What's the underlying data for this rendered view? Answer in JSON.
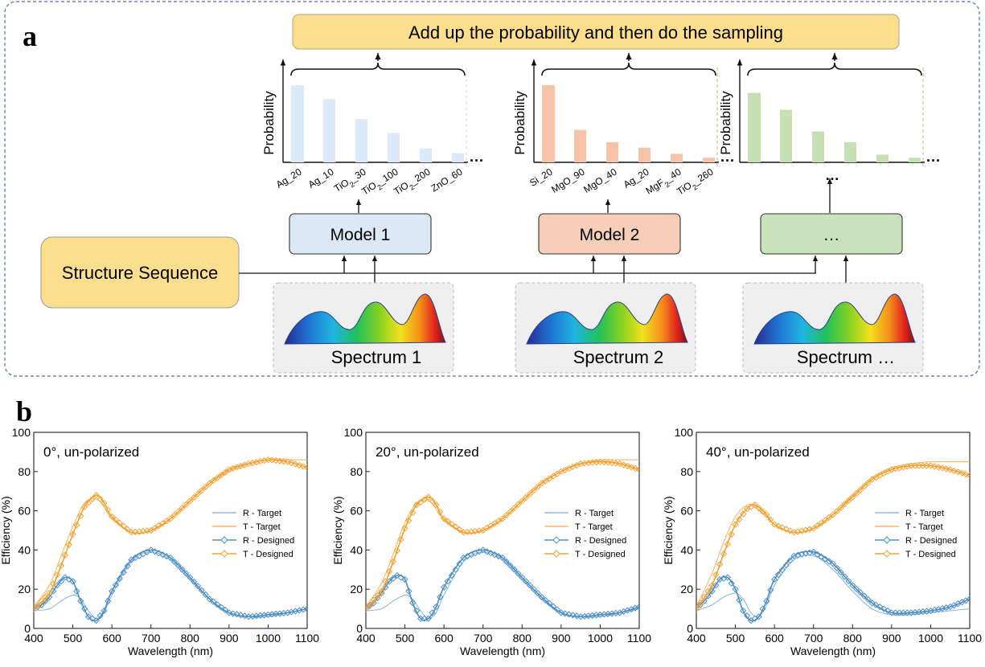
{
  "panel_a": {
    "label": "a",
    "top_box": "Add up the probability and then do the sampling",
    "structure_box": "Structure Sequence",
    "prob_axis_label": "Probability",
    "models": [
      {
        "name": "Model 1",
        "fill": "#dce8f5",
        "bar_color": "#dce9f7",
        "spectrum": "Spectrum 1",
        "categories": [
          "Ag_20",
          "Ag_10",
          "TiO2_30",
          "TiO2_100",
          "TiO2_200",
          "ZnO_60"
        ],
        "probabilities": [
          1.0,
          0.82,
          0.56,
          0.38,
          0.18,
          0.12
        ]
      },
      {
        "name": "Model 2",
        "fill": "#f7cfb8",
        "bar_color": "#f5c4a8",
        "spectrum": "Spectrum 2",
        "categories": [
          "Si_20",
          "MgO_90",
          "MgO_40",
          "Ag_20",
          "MgF2_40",
          "TiO2_260"
        ],
        "probabilities": [
          1.0,
          0.42,
          0.26,
          0.19,
          0.11,
          0.06
        ]
      },
      {
        "name": "…",
        "fill": "#c9e2bd",
        "bar_color": "#c6e0b4",
        "spectrum": "Spectrum …",
        "categories_placeholder": "…",
        "categories": [],
        "probabilities": [
          0.9,
          0.68,
          0.4,
          0.26,
          0.1,
          0.06
        ]
      }
    ]
  },
  "panel_b": {
    "label": "b",
    "legend": [
      "R - Target",
      "T - Target",
      "R - Designed",
      "T - Designed"
    ],
    "colors": {
      "R": "#4a8ec8",
      "T": "#f5a030",
      "R_target": "#8fb9df",
      "T_target": "#f8b968"
    }
  },
  "chart_data": [
    {
      "type": "line",
      "title": "0°, un-polarized",
      "xlabel": "Wavelength (nm)",
      "ylabel": "Efficiency (%)",
      "xlim": [
        400,
        1100
      ],
      "ylim": [
        0,
        100
      ],
      "xticks": [
        400,
        500,
        600,
        700,
        800,
        900,
        1000,
        1100
      ],
      "yticks": [
        0,
        20,
        40,
        60,
        80,
        100
      ],
      "series": [
        {
          "name": "R - Target",
          "x": [
            400,
            440,
            470,
            500,
            520,
            540,
            560,
            580,
            600,
            650,
            700,
            750,
            800,
            850,
            900,
            950,
            1000,
            1050,
            1100
          ],
          "y": [
            9,
            10,
            14,
            17,
            15,
            9,
            5,
            8,
            17,
            34,
            39,
            35,
            25,
            15,
            8,
            6,
            6,
            8,
            10
          ]
        },
        {
          "name": "T - Target",
          "x": [
            400,
            440,
            470,
            500,
            530,
            560,
            580,
            600,
            650,
            700,
            750,
            800,
            850,
            900,
            950,
            1000,
            1050,
            1100
          ],
          "y": [
            11,
            22,
            37,
            52,
            64,
            66,
            62,
            56,
            49,
            50,
            56,
            65,
            74,
            80,
            84,
            86,
            86,
            86
          ]
        },
        {
          "name": "R - Designed",
          "x": [
            400,
            420,
            440,
            460,
            480,
            500,
            520,
            540,
            560,
            580,
            600,
            650,
            700,
            750,
            800,
            850,
            900,
            950,
            1000,
            1050,
            1100
          ],
          "y": [
            10,
            12,
            16,
            22,
            26,
            24,
            14,
            6,
            4,
            9,
            19,
            35,
            40,
            36,
            26,
            15,
            8,
            6,
            7,
            8,
            10
          ]
        },
        {
          "name": "T - Designed",
          "x": [
            400,
            440,
            470,
            500,
            530,
            560,
            580,
            600,
            650,
            700,
            750,
            800,
            850,
            900,
            950,
            1000,
            1050,
            1100
          ],
          "y": [
            10,
            18,
            32,
            48,
            62,
            68,
            64,
            57,
            49,
            50,
            56,
            65,
            74,
            81,
            84,
            86,
            85,
            82
          ]
        }
      ]
    },
    {
      "type": "line",
      "title": "20°, un-polarized",
      "xlabel": "Wavelength (nm)",
      "ylabel": "Efficiency (%)",
      "xlim": [
        400,
        1100
      ],
      "ylim": [
        0,
        100
      ],
      "xticks": [
        400,
        500,
        600,
        700,
        800,
        900,
        1000,
        1100
      ],
      "yticks": [
        0,
        20,
        40,
        60,
        80,
        100
      ],
      "series": [
        {
          "name": "R - Target",
          "x": [
            400,
            440,
            470,
            500,
            520,
            540,
            560,
            580,
            600,
            650,
            700,
            750,
            800,
            850,
            900,
            950,
            1000,
            1050,
            1100
          ],
          "y": [
            9,
            10,
            14,
            17,
            15,
            9,
            5,
            8,
            17,
            34,
            39,
            35,
            25,
            15,
            8,
            6,
            6,
            8,
            10
          ]
        },
        {
          "name": "T - Target",
          "x": [
            400,
            440,
            470,
            500,
            530,
            560,
            580,
            600,
            650,
            700,
            750,
            800,
            850,
            900,
            950,
            1000,
            1050,
            1100
          ],
          "y": [
            11,
            23,
            38,
            54,
            64,
            65,
            61,
            55,
            49,
            50,
            56,
            65,
            74,
            80,
            84,
            86,
            86,
            86
          ]
        },
        {
          "name": "R - Designed",
          "x": [
            400,
            420,
            440,
            460,
            480,
            500,
            520,
            540,
            560,
            580,
            600,
            650,
            700,
            750,
            800,
            850,
            900,
            950,
            1000,
            1050,
            1100
          ],
          "y": [
            10,
            13,
            18,
            24,
            27,
            25,
            13,
            5,
            5,
            11,
            21,
            36,
            40,
            36,
            26,
            16,
            8,
            6,
            7,
            8,
            11
          ]
        },
        {
          "name": "T - Designed",
          "x": [
            400,
            440,
            470,
            500,
            530,
            560,
            580,
            600,
            650,
            700,
            750,
            800,
            850,
            900,
            950,
            1000,
            1050,
            1100
          ],
          "y": [
            10,
            19,
            34,
            51,
            63,
            67,
            63,
            56,
            49,
            50,
            56,
            65,
            74,
            80,
            84,
            85,
            84,
            81
          ]
        }
      ]
    },
    {
      "type": "line",
      "title": "40°, un-polarized",
      "xlabel": "Wavelength (nm)",
      "ylabel": "Efficiency (%)",
      "xlim": [
        400,
        1100
      ],
      "ylim": [
        0,
        100
      ],
      "xticks": [
        400,
        500,
        600,
        700,
        800,
        900,
        1000,
        1100
      ],
      "yticks": [
        0,
        20,
        40,
        60,
        80,
        100
      ],
      "series": [
        {
          "name": "R - Target",
          "x": [
            400,
            440,
            470,
            500,
            520,
            540,
            560,
            580,
            600,
            650,
            700,
            750,
            800,
            850,
            900,
            950,
            1000,
            1050,
            1100
          ],
          "y": [
            9,
            12,
            16,
            18,
            15,
            8,
            6,
            12,
            22,
            35,
            37,
            30,
            19,
            10,
            7,
            7,
            8,
            9,
            10
          ]
        },
        {
          "name": "T - Target",
          "x": [
            400,
            440,
            470,
            500,
            530,
            550,
            580,
            600,
            650,
            700,
            750,
            800,
            850,
            900,
            950,
            1000,
            1050,
            1100
          ],
          "y": [
            11,
            28,
            44,
            57,
            63,
            62,
            57,
            53,
            49,
            51,
            58,
            68,
            77,
            82,
            84,
            85,
            85,
            85
          ]
        },
        {
          "name": "R - Designed",
          "x": [
            400,
            420,
            440,
            460,
            480,
            500,
            520,
            540,
            560,
            580,
            600,
            650,
            700,
            750,
            800,
            850,
            900,
            950,
            1000,
            1050,
            1100
          ],
          "y": [
            10,
            14,
            19,
            25,
            26,
            20,
            9,
            4,
            6,
            14,
            25,
            37,
            39,
            33,
            22,
            13,
            8,
            8,
            9,
            11,
            15
          ]
        },
        {
          "name": "T - Designed",
          "x": [
            400,
            440,
            470,
            500,
            530,
            550,
            580,
            600,
            650,
            700,
            750,
            800,
            850,
            900,
            950,
            1000,
            1050,
            1100
          ],
          "y": [
            10,
            22,
            38,
            53,
            61,
            63,
            58,
            53,
            49,
            51,
            58,
            67,
            76,
            81,
            83,
            83,
            81,
            78
          ]
        }
      ]
    }
  ]
}
